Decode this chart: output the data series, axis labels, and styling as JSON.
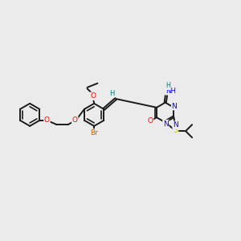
{
  "bg_color": "#ebebeb",
  "bond_color": "#1a1a1a",
  "bond_width": 1.4,
  "dbo": 0.06,
  "fig_size": [
    3.0,
    3.0
  ],
  "dpi": 100,
  "atom_colors": {
    "O": "#ff0000",
    "N": "#0000ff",
    "S": "#cccc00",
    "Br": "#cc6600",
    "H": "#008080",
    "C": "#1a1a1a"
  }
}
